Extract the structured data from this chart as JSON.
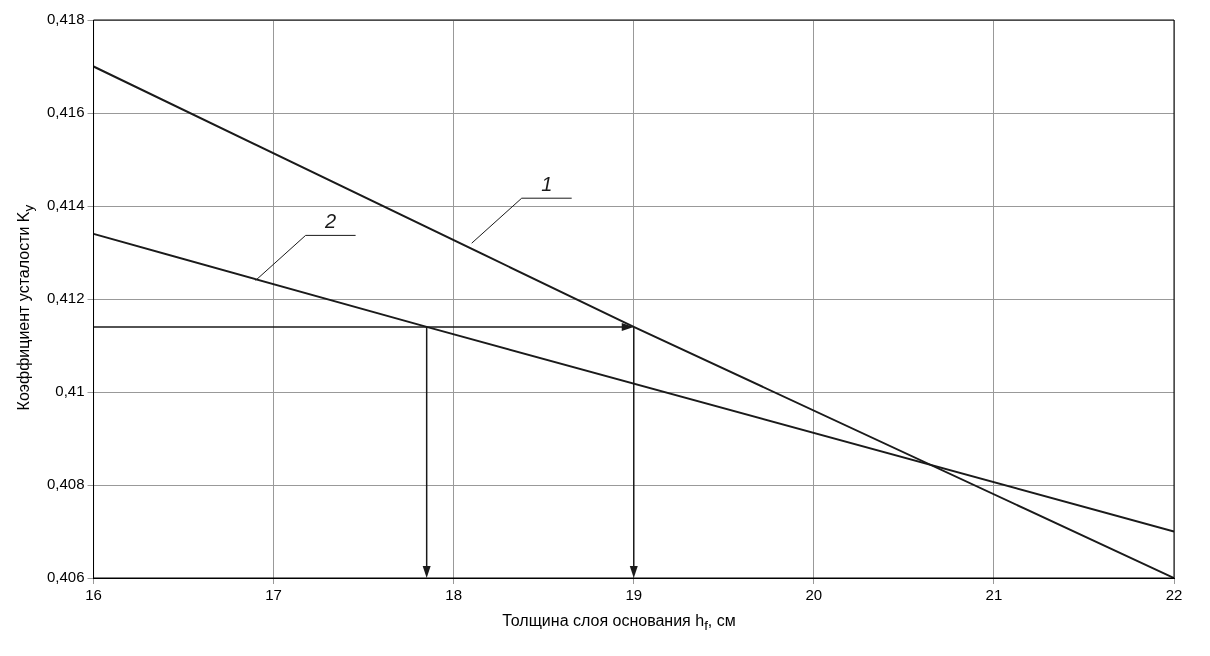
{
  "chart_data": {
    "type": "line",
    "xlabel": "Толщина слоя основания h$_{f}$, см",
    "ylabel": "Коэффициент усталости K$_{у}$",
    "series": [
      {
        "color": "#1a1a1a",
        "x": [
          16,
          19,
          22
        ],
        "values": [
          0.417,
          0.4114,
          0.406
        ]
      },
      {
        "color": "#1a1a1a",
        "x": [
          16,
          17.85,
          22
        ],
        "values": [
          0.4134,
          0.4114,
          0.407
        ]
      }
    ],
    "annotations": [
      {
        "text": "1",
        "x": 18.1,
        "y": 0.4132
      },
      {
        "text": "2",
        "x": 16.9,
        "y": 0.4124
      }
    ],
    "xlim": [
      16,
      22
    ],
    "xticks": [
      16,
      17,
      18,
      19,
      20,
      21,
      22
    ],
    "ylim": [
      0.406,
      0.418
    ],
    "yticks": [
      {
        "value": 0.406,
        "label": "0,406"
      },
      {
        "value": 0.408,
        "label": "0,408"
      },
      {
        "value": 0.41,
        "label": "0,41"
      },
      {
        "value": 0.412,
        "label": "0,412"
      },
      {
        "value": 0.414,
        "label": "0,414"
      },
      {
        "value": 0.416,
        "label": "0,416"
      },
      {
        "value": 0.418,
        "label": "0,418"
      }
    ],
    "grid": true,
    "legend": false,
    "marker": "none",
    "line_style": "solid"
  }
}
